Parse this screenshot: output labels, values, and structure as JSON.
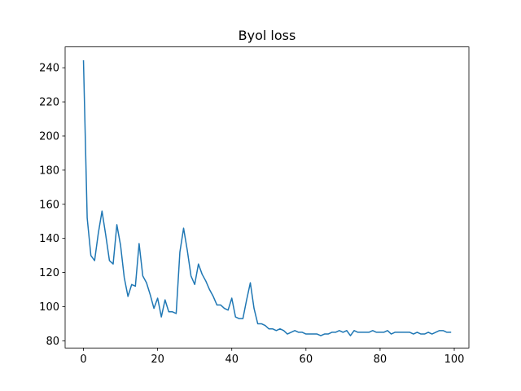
{
  "chart_data": {
    "type": "line",
    "title": "Byol loss",
    "xlabel": "",
    "ylabel": "",
    "xlim": [
      -4.95,
      103.95
    ],
    "ylim": [
      75.8,
      252.2
    ],
    "xticks": [
      0,
      20,
      40,
      60,
      80,
      100
    ],
    "yticks": [
      80,
      100,
      120,
      140,
      160,
      180,
      200,
      220,
      240
    ],
    "grid": false,
    "legend": "none",
    "series": [
      {
        "color": "#1f77b4",
        "x": [
          0,
          1,
          2,
          3,
          4,
          5,
          6,
          7,
          8,
          9,
          10,
          11,
          12,
          13,
          14,
          15,
          16,
          17,
          18,
          19,
          20,
          21,
          22,
          23,
          24,
          25,
          26,
          27,
          28,
          29,
          30,
          31,
          32,
          33,
          34,
          35,
          36,
          37,
          38,
          39,
          40,
          41,
          42,
          43,
          44,
          45,
          46,
          47,
          48,
          49,
          50,
          51,
          52,
          53,
          54,
          55,
          56,
          57,
          58,
          59,
          60,
          61,
          62,
          63,
          64,
          65,
          66,
          67,
          68,
          69,
          70,
          71,
          72,
          73,
          74,
          75,
          76,
          77,
          78,
          79,
          80,
          81,
          82,
          83,
          84,
          85,
          86,
          87,
          88,
          89,
          90,
          91,
          92,
          93,
          94,
          95,
          96,
          97,
          98,
          99
        ],
        "values": [
          244,
          152,
          130,
          127,
          143,
          156,
          142,
          127,
          125,
          148,
          136,
          117,
          106,
          113,
          112,
          137,
          118,
          114,
          107,
          99,
          105,
          94,
          104,
          97,
          97,
          96,
          132,
          146,
          133,
          118,
          113,
          125,
          119,
          115,
          110,
          106,
          101,
          101,
          99,
          98,
          105,
          94,
          93,
          93,
          104,
          114,
          99,
          90,
          90,
          89,
          87,
          87,
          86,
          87,
          86,
          84,
          85,
          86,
          85,
          85,
          84,
          84,
          84,
          84,
          83,
          84,
          84,
          85,
          85,
          86,
          85,
          86,
          83,
          86,
          85,
          85,
          85,
          85,
          86,
          85,
          85,
          85,
          86,
          84,
          85,
          85,
          85,
          85,
          85,
          84,
          85,
          84,
          84,
          85,
          84,
          85,
          86,
          86,
          85,
          85
        ]
      }
    ]
  }
}
